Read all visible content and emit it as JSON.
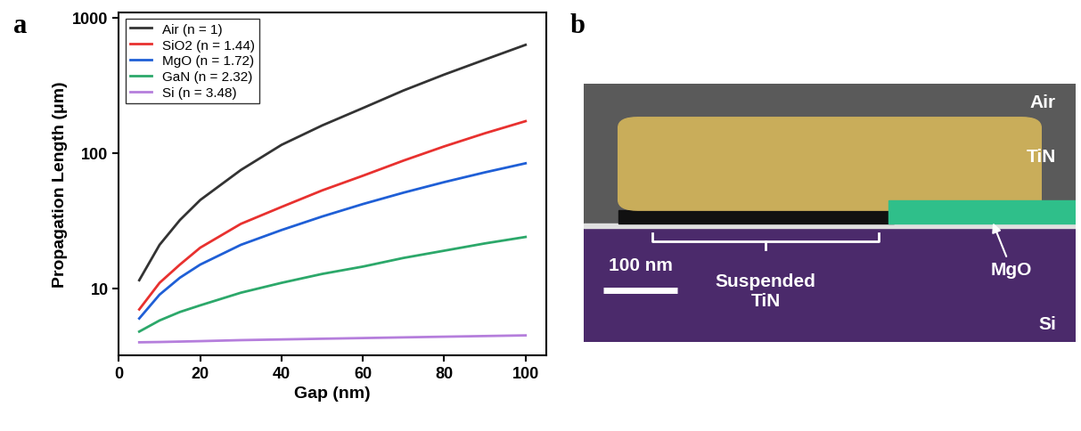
{
  "panel_labels": [
    "a",
    "b"
  ],
  "chart_data": {
    "type": "line",
    "x_label": "Gap (nm)",
    "y_label": "Propagation Length (μm)",
    "x": [
      5,
      10,
      15,
      20,
      30,
      40,
      50,
      60,
      70,
      80,
      90,
      100
    ],
    "series": [
      {
        "name": "Air (n = 1)",
        "color": "#333333",
        "values": [
          11.5,
          21,
          32,
          45,
          75,
          115,
          160,
          215,
          290,
          380,
          490,
          630
        ]
      },
      {
        "name": "SiO2 (n = 1.44)",
        "color": "#e8312f",
        "values": [
          7,
          11,
          15,
          20,
          30,
          40,
          53,
          68,
          88,
          112,
          140,
          172
        ]
      },
      {
        "name": "MgO (n = 1.72)",
        "color": "#1f5fd6",
        "values": [
          6,
          9,
          12,
          15,
          21,
          27,
          34,
          42,
          51,
          61,
          72,
          84
        ]
      },
      {
        "name": "GaN (n = 2.32)",
        "color": "#2ca86a",
        "values": [
          4.8,
          5.8,
          6.7,
          7.5,
          9.3,
          11,
          12.8,
          14.5,
          16.8,
          19,
          21.5,
          24
        ]
      },
      {
        "name": "Si (n = 3.48)",
        "color": "#b57edc",
        "values": [
          4.0,
          4.02,
          4.05,
          4.08,
          4.15,
          4.2,
          4.25,
          4.3,
          4.35,
          4.4,
          4.45,
          4.5
        ]
      }
    ],
    "xlim": [
      0,
      105
    ],
    "xticks": [
      0,
      20,
      40,
      60,
      80,
      100
    ],
    "ylim": [
      3.2,
      1100
    ],
    "yticks": [
      10,
      100,
      1000
    ],
    "log": "y",
    "legend": "upper left",
    "grid": false
  },
  "image": {
    "labels": {
      "top": "Air",
      "layer": "TiN",
      "oxide": "MgO",
      "gap": "Suspended\nTiN",
      "substrate": "Si"
    },
    "scale_bar": "100 nm"
  }
}
